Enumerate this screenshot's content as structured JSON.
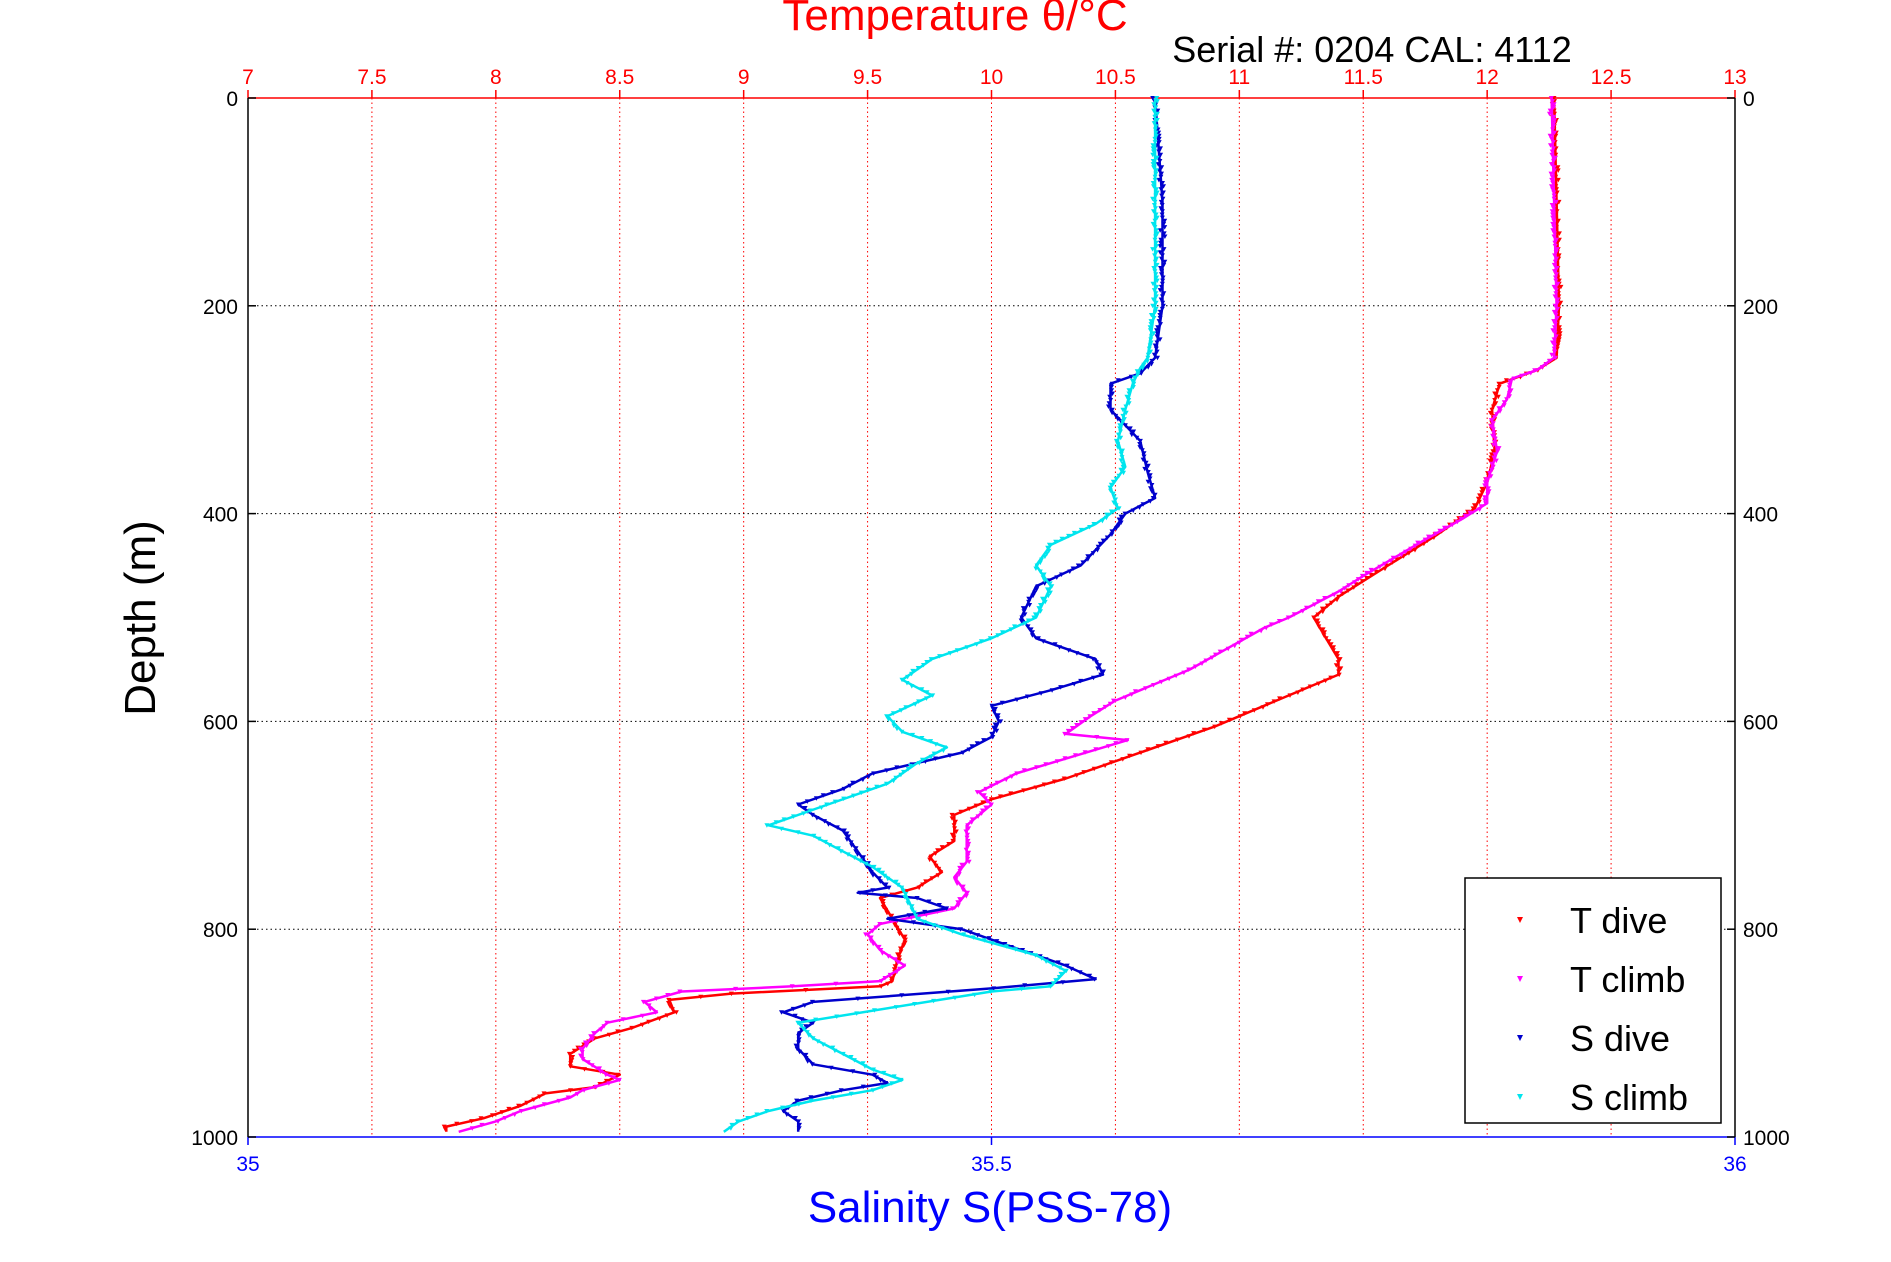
{
  "chart_data": {
    "type": "scatter",
    "title": "Temperature θ/°C",
    "subtitle": "Serial #: 0204  CAL: 4112",
    "xlabel_top": "Temperature θ/°C",
    "xlabel_bottom": "Salinity S(PSS-78)",
    "ylabel": "Depth (m)",
    "temperature_axis": {
      "lim": [
        7,
        13
      ],
      "ticks": [
        "7",
        "7.5",
        "8",
        "8.5",
        "9",
        "9.5",
        "10",
        "10.5",
        "11",
        "11.5",
        "12",
        "12.5",
        "13"
      ],
      "tick_values": [
        7,
        7.5,
        8,
        8.5,
        9,
        9.5,
        10,
        10.5,
        11,
        11.5,
        12,
        12.5,
        13
      ],
      "color": "#ff0000",
      "grid": true
    },
    "salinity_axis": {
      "lim": [
        35,
        36
      ],
      "ticks": [
        "35",
        "35.5",
        "36"
      ],
      "tick_values": [
        35,
        35.5,
        36
      ],
      "color": "#0000ff"
    },
    "depth_axis": {
      "lim": [
        0,
        1000
      ],
      "reversed": true,
      "ticks": [
        "0",
        "200",
        "400",
        "600",
        "800",
        "1000"
      ],
      "tick_values": [
        0,
        200,
        400,
        600,
        800,
        1000
      ],
      "grid": true
    },
    "legend": {
      "placement": "bottom-right",
      "entries": [
        "T dive",
        "T climb",
        "S dive",
        "S climb"
      ]
    },
    "series": [
      {
        "name": "T dive",
        "axis": "temperature",
        "color": "#ff0000",
        "points": [
          [
            12.27,
            0
          ],
          [
            12.28,
            100
          ],
          [
            12.29,
            200
          ],
          [
            12.28,
            250
          ],
          [
            12.2,
            262
          ],
          [
            12.05,
            275
          ],
          [
            12.02,
            300
          ],
          [
            12.03,
            340
          ],
          [
            12.0,
            370
          ],
          [
            11.95,
            395
          ],
          [
            11.8,
            420
          ],
          [
            11.6,
            450
          ],
          [
            11.4,
            480
          ],
          [
            11.3,
            500
          ],
          [
            11.35,
            520
          ],
          [
            11.4,
            540
          ],
          [
            11.4,
            555
          ],
          [
            11.2,
            575
          ],
          [
            11.0,
            595
          ],
          [
            10.9,
            605
          ],
          [
            10.6,
            630
          ],
          [
            10.3,
            655
          ],
          [
            10.0,
            675
          ],
          [
            9.85,
            690
          ],
          [
            9.85,
            700
          ],
          [
            9.85,
            715
          ],
          [
            9.75,
            730
          ],
          [
            9.8,
            745
          ],
          [
            9.7,
            760
          ],
          [
            9.55,
            770
          ],
          [
            9.6,
            790
          ],
          [
            9.65,
            810
          ],
          [
            9.62,
            830
          ],
          [
            9.6,
            850
          ],
          [
            9.55,
            855
          ],
          [
            8.95,
            862
          ],
          [
            8.7,
            868
          ],
          [
            8.72,
            880
          ],
          [
            8.55,
            895
          ],
          [
            8.4,
            905
          ],
          [
            8.3,
            920
          ],
          [
            8.3,
            932
          ],
          [
            8.5,
            940
          ],
          [
            8.4,
            952
          ],
          [
            8.2,
            958
          ],
          [
            8.1,
            970
          ],
          [
            7.95,
            982
          ],
          [
            7.8,
            990
          ],
          [
            7.8,
            995
          ]
        ]
      },
      {
        "name": "T climb",
        "axis": "temperature",
        "color": "#ff00ff",
        "points": [
          [
            12.26,
            0
          ],
          [
            12.27,
            100
          ],
          [
            12.28,
            200
          ],
          [
            12.27,
            250
          ],
          [
            12.2,
            262
          ],
          [
            12.1,
            270
          ],
          [
            12.08,
            290
          ],
          [
            12.02,
            310
          ],
          [
            12.04,
            340
          ],
          [
            12.0,
            370
          ],
          [
            12.0,
            390
          ],
          [
            11.9,
            405
          ],
          [
            11.75,
            425
          ],
          [
            11.5,
            460
          ],
          [
            11.4,
            475
          ],
          [
            11.2,
            500
          ],
          [
            11.1,
            510
          ],
          [
            10.95,
            530
          ],
          [
            10.8,
            550
          ],
          [
            10.65,
            565
          ],
          [
            10.5,
            580
          ],
          [
            10.4,
            595
          ],
          [
            10.3,
            612
          ],
          [
            10.55,
            618
          ],
          [
            10.1,
            650
          ],
          [
            9.95,
            668
          ],
          [
            10.0,
            680
          ],
          [
            9.9,
            700
          ],
          [
            9.9,
            715
          ],
          [
            9.9,
            735
          ],
          [
            9.85,
            750
          ],
          [
            9.9,
            765
          ],
          [
            9.85,
            780
          ],
          [
            9.55,
            795
          ],
          [
            9.5,
            805
          ],
          [
            9.55,
            820
          ],
          [
            9.65,
            835
          ],
          [
            9.55,
            850
          ],
          [
            9.2,
            855
          ],
          [
            8.75,
            860
          ],
          [
            8.6,
            870
          ],
          [
            8.65,
            880
          ],
          [
            8.45,
            890
          ],
          [
            8.4,
            900
          ],
          [
            8.35,
            915
          ],
          [
            8.35,
            925
          ],
          [
            8.45,
            940
          ],
          [
            8.5,
            945
          ],
          [
            8.35,
            955
          ],
          [
            8.3,
            962
          ],
          [
            8.1,
            975
          ],
          [
            8.0,
            985
          ],
          [
            7.85,
            995
          ]
        ]
      },
      {
        "name": "S dive",
        "axis": "salinity",
        "color": "#0000cc",
        "points": [
          [
            35.61,
            0
          ],
          [
            35.615,
            100
          ],
          [
            35.615,
            200
          ],
          [
            35.61,
            250
          ],
          [
            35.6,
            265
          ],
          [
            35.58,
            275
          ],
          [
            35.58,
            300
          ],
          [
            35.6,
            330
          ],
          [
            35.605,
            360
          ],
          [
            35.61,
            385
          ],
          [
            35.59,
            400
          ],
          [
            35.58,
            420
          ],
          [
            35.56,
            450
          ],
          [
            35.53,
            470
          ],
          [
            35.52,
            500
          ],
          [
            35.53,
            520
          ],
          [
            35.57,
            540
          ],
          [
            35.575,
            555
          ],
          [
            35.54,
            570
          ],
          [
            35.5,
            585
          ],
          [
            35.505,
            600
          ],
          [
            35.5,
            615
          ],
          [
            35.48,
            630
          ],
          [
            35.42,
            650
          ],
          [
            35.4,
            665
          ],
          [
            35.37,
            680
          ],
          [
            35.38,
            690
          ],
          [
            35.4,
            705
          ],
          [
            35.41,
            725
          ],
          [
            35.42,
            745
          ],
          [
            35.43,
            760
          ],
          [
            35.41,
            765
          ],
          [
            35.45,
            770
          ],
          [
            35.47,
            780
          ],
          [
            35.43,
            790
          ],
          [
            35.48,
            800
          ],
          [
            35.52,
            820
          ],
          [
            35.55,
            835
          ],
          [
            35.57,
            848
          ],
          [
            35.5,
            857
          ],
          [
            35.38,
            870
          ],
          [
            35.36,
            880
          ],
          [
            35.38,
            890
          ],
          [
            35.37,
            900
          ],
          [
            35.37,
            915
          ],
          [
            35.38,
            930
          ],
          [
            35.42,
            940
          ],
          [
            35.43,
            948
          ],
          [
            35.4,
            955
          ],
          [
            35.37,
            965
          ],
          [
            35.36,
            975
          ],
          [
            35.37,
            985
          ],
          [
            35.37,
            995
          ]
        ]
      },
      {
        "name": "S climb",
        "axis": "salinity",
        "color": "#00e5ee",
        "points": [
          [
            35.61,
            0
          ],
          [
            35.61,
            100
          ],
          [
            35.61,
            200
          ],
          [
            35.605,
            250
          ],
          [
            35.6,
            260
          ],
          [
            35.595,
            275
          ],
          [
            35.59,
            300
          ],
          [
            35.585,
            330
          ],
          [
            35.59,
            355
          ],
          [
            35.58,
            375
          ],
          [
            35.585,
            395
          ],
          [
            35.57,
            410
          ],
          [
            35.54,
            430
          ],
          [
            35.53,
            450
          ],
          [
            35.54,
            470
          ],
          [
            35.53,
            500
          ],
          [
            35.5,
            520
          ],
          [
            35.46,
            540
          ],
          [
            35.44,
            560
          ],
          [
            35.46,
            575
          ],
          [
            35.43,
            595
          ],
          [
            35.44,
            610
          ],
          [
            35.47,
            625
          ],
          [
            35.45,
            640
          ],
          [
            35.43,
            660
          ],
          [
            35.39,
            680
          ],
          [
            35.35,
            700
          ],
          [
            35.38,
            710
          ],
          [
            35.4,
            725
          ],
          [
            35.42,
            740
          ],
          [
            35.44,
            760
          ],
          [
            35.45,
            790
          ],
          [
            35.48,
            805
          ],
          [
            35.53,
            825
          ],
          [
            35.55,
            840
          ],
          [
            35.54,
            855
          ],
          [
            35.5,
            860
          ],
          [
            35.37,
            890
          ],
          [
            35.38,
            905
          ],
          [
            35.4,
            920
          ],
          [
            35.42,
            935
          ],
          [
            35.44,
            945
          ],
          [
            35.42,
            955
          ],
          [
            35.38,
            965
          ],
          [
            35.35,
            975
          ],
          [
            35.33,
            985
          ],
          [
            35.32,
            995
          ]
        ]
      }
    ]
  }
}
